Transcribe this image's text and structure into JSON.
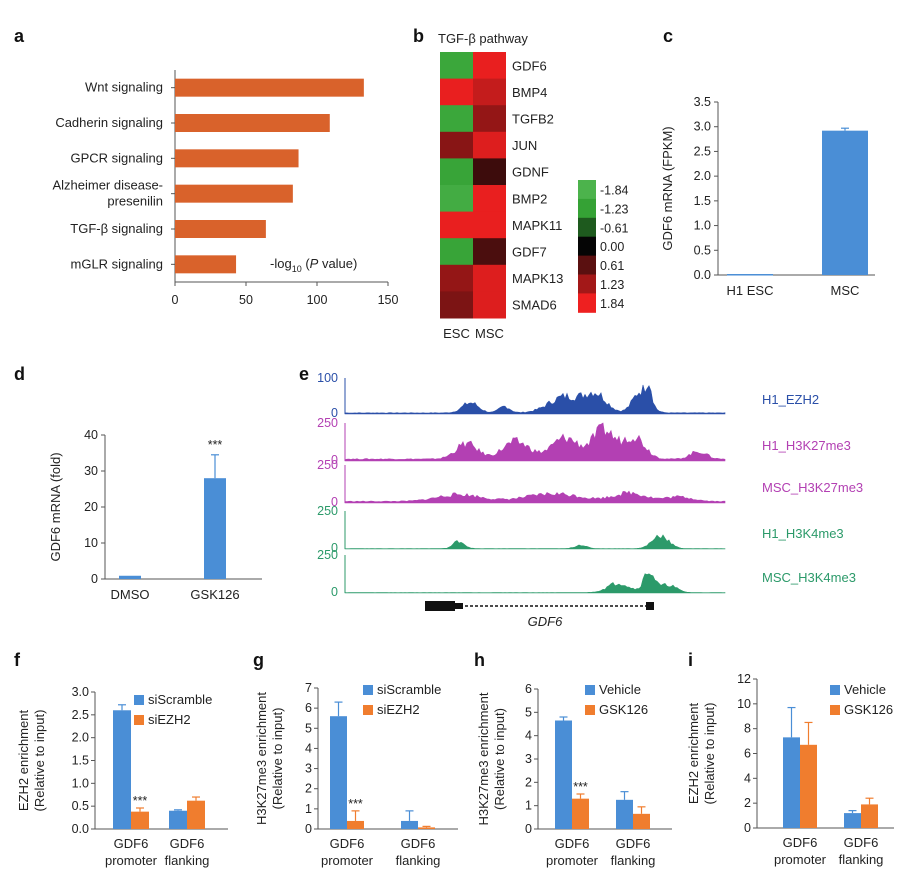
{
  "chart_data": [
    {
      "panel": "a",
      "type": "bar",
      "orientation": "horizontal",
      "categories": [
        "Wnt signaling",
        "Cadherin signaling",
        "GPCR signaling",
        "Alzheimer disease-presenilin",
        "TGF-β signaling",
        "mGLR signaling"
      ],
      "category_lines": [
        [
          "Wnt signaling"
        ],
        [
          "Cadherin signaling"
        ],
        [
          "GPCR signaling"
        ],
        [
          "Alzheimer disease-",
          "presenilin"
        ],
        [
          "TGF-β signaling"
        ],
        [
          "mGLR signaling"
        ]
      ],
      "values": [
        133,
        109,
        87,
        83,
        64,
        43
      ],
      "xlabel_prefix": "-log",
      "xlabel_sub": "10",
      "xlabel_var": " (P",
      "xlabel_suffix": " value)",
      "xlim": [
        0,
        150
      ],
      "xticks": [
        "0",
        "50",
        "100",
        "150"
      ],
      "color": "#d9622b"
    },
    {
      "panel": "b",
      "type": "heatmap",
      "title": "TGF-β pathway",
      "columns": [
        "ESC",
        "MSC"
      ],
      "rows": [
        "GDF6",
        "BMP4",
        "TGFB2",
        "JUN",
        "GDNF",
        "BMP2",
        "MAPK11",
        "GDF7",
        "MAPK13",
        "SMAD6"
      ],
      "values": [
        [
          -1.4,
          1.8
        ],
        [
          1.8,
          1.5
        ],
        [
          -1.4,
          1.1
        ],
        [
          1.0,
          1.7
        ],
        [
          -1.3,
          0.4
        ],
        [
          -1.6,
          1.8
        ],
        [
          1.8,
          1.8
        ],
        [
          -1.3,
          0.5
        ],
        [
          1.1,
          1.7
        ],
        [
          0.9,
          1.7
        ]
      ],
      "colorbar_labels": [
        "-1.84",
        "-1.23",
        "-0.61",
        "0.00",
        "0.61",
        "1.23",
        "1.84"
      ],
      "colorbar_colors": [
        "#4cb34c",
        "#35a235",
        "#1e5a1e",
        "#050505",
        "#5a1010",
        "#a31818",
        "#ee2020"
      ]
    },
    {
      "panel": "c",
      "type": "bar",
      "categories": [
        "H1 ESC",
        "MSC"
      ],
      "values": [
        0.02,
        2.92
      ],
      "errors": [
        0,
        0.05
      ],
      "ylabel": "GDF6 mRNA (FPKM)",
      "ylim": [
        0,
        3.5
      ],
      "yticks": [
        "0.0",
        "0.5",
        "1.0",
        "1.5",
        "2.0",
        "2.5",
        "3.0",
        "3.5"
      ],
      "color": "#4a8ed6"
    },
    {
      "panel": "d",
      "type": "bar",
      "categories": [
        "DMSO",
        "GSK126"
      ],
      "values": [
        0.9,
        28
      ],
      "errors": [
        0,
        6.5
      ],
      "significance": [
        "",
        "***"
      ],
      "ylabel": "GDF6 mRNA (fold)",
      "ylim": [
        0,
        40
      ],
      "yticks": [
        "0",
        "10",
        "20",
        "30",
        "40"
      ],
      "color": "#4a8ed6"
    },
    {
      "panel": "e",
      "type": "area",
      "tracks": [
        {
          "name": "H1_EZH2",
          "max_label": "100",
          "min_label": "0",
          "color": "#2a4fa8"
        },
        {
          "name": "H1_H3K27me3",
          "max_label": "250",
          "min_label": "0",
          "color": "#b340b3"
        },
        {
          "name": "MSC_H3K27me3",
          "max_label": "250",
          "min_label": "0",
          "color": "#b340b3"
        },
        {
          "name": "H1_H3K4me3",
          "max_label": "250",
          "min_label": "0",
          "color": "#2c9a6a"
        },
        {
          "name": "MSC_H3K4me3",
          "max_label": "250",
          "min_label": "0",
          "color": "#2c9a6a"
        }
      ],
      "gene": "GDF6"
    },
    {
      "panel": "f",
      "type": "bar",
      "categories": [
        [
          "GDF6",
          "promoter"
        ],
        [
          "GDF6",
          "flanking"
        ]
      ],
      "series": [
        {
          "name": "siScramble",
          "values": [
            2.6,
            0.4
          ],
          "errors": [
            0.12,
            0.02
          ],
          "color": "#4a8ed6"
        },
        {
          "name": "siEZH2",
          "values": [
            0.38,
            0.62
          ],
          "errors": [
            0.08,
            0.08
          ],
          "color": "#f07d2e"
        }
      ],
      "significance": [
        "***",
        ""
      ],
      "ylabel_lines": [
        "EZH2 enrichment",
        "(Relative to input)"
      ],
      "ylim": [
        0,
        3
      ],
      "yticks": [
        "0.0",
        "0.5",
        "1.0",
        "1.5",
        "2.0",
        "2.5",
        "3.0"
      ]
    },
    {
      "panel": "g",
      "type": "bar",
      "categories": [
        [
          "GDF6",
          "promoter"
        ],
        [
          "GDF6",
          "flanking"
        ]
      ],
      "series": [
        {
          "name": "siScramble",
          "values": [
            5.6,
            0.4
          ],
          "errors": [
            0.7,
            0.5
          ],
          "color": "#4a8ed6"
        },
        {
          "name": "siEZH2",
          "values": [
            0.4,
            0.08
          ],
          "errors": [
            0.5,
            0.05
          ],
          "color": "#f07d2e"
        }
      ],
      "significance": [
        "***",
        ""
      ],
      "ylabel_lines": [
        "H3K27me3 enrichment",
        "(Relative to input)"
      ],
      "ylim": [
        0,
        7
      ],
      "yticks": [
        "0",
        "1",
        "2",
        "3",
        "4",
        "5",
        "6",
        "7"
      ]
    },
    {
      "panel": "h",
      "type": "bar",
      "categories": [
        [
          "GDF6",
          "promoter"
        ],
        [
          "GDF6",
          "flanking"
        ]
      ],
      "series": [
        {
          "name": "Vehicle",
          "values": [
            4.65,
            1.25
          ],
          "errors": [
            0.15,
            0.35
          ],
          "color": "#4a8ed6"
        },
        {
          "name": "GSK126",
          "values": [
            1.3,
            0.65
          ],
          "errors": [
            0.2,
            0.3
          ],
          "color": "#f07d2e"
        }
      ],
      "significance": [
        "***",
        ""
      ],
      "ylabel_lines": [
        "H3K27me3 enrichment",
        "(Relative to input)"
      ],
      "ylim": [
        0,
        6
      ],
      "yticks": [
        "0",
        "1",
        "2",
        "3",
        "4",
        "5",
        "6"
      ]
    },
    {
      "panel": "i",
      "type": "bar",
      "categories": [
        [
          "GDF6",
          "promoter"
        ],
        [
          "GDF6",
          "flanking"
        ]
      ],
      "series": [
        {
          "name": "Vehicle",
          "values": [
            7.3,
            1.2
          ],
          "errors": [
            2.4,
            0.2
          ],
          "color": "#4a8ed6"
        },
        {
          "name": "GSK126",
          "values": [
            6.7,
            1.9
          ],
          "errors": [
            1.8,
            0.5
          ],
          "color": "#f07d2e"
        }
      ],
      "significance": [
        "",
        ""
      ],
      "ylabel_lines": [
        "EZH2 enrichment",
        "(Relative to input)"
      ],
      "ylim": [
        0,
        12
      ],
      "yticks": [
        "0",
        "2",
        "4",
        "6",
        "8",
        "10",
        "12"
      ]
    }
  ]
}
